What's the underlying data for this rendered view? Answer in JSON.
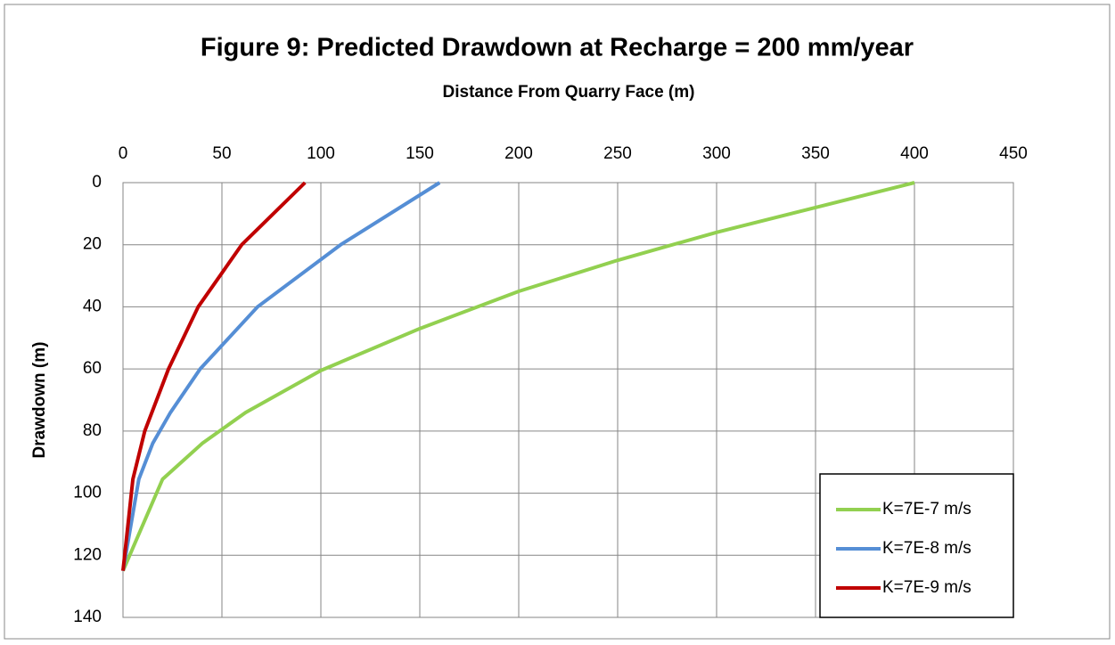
{
  "chart_data": {
    "type": "line",
    "title": "Figure 9: Predicted Drawdown at Recharge = 200 mm/year",
    "x_label": "Distance From Quarry Face (m)",
    "y_label": "Drawdown (m)",
    "xlim": [
      0,
      450
    ],
    "xticks": [
      0,
      50,
      100,
      150,
      200,
      250,
      300,
      350,
      400,
      450
    ],
    "ylim": [
      0,
      140
    ],
    "yticks": [
      0,
      20,
      40,
      60,
      80,
      100,
      120,
      140
    ],
    "y_reversed": true,
    "x_axis_position": "top",
    "grid": true,
    "legend": "lower right",
    "series": [
      {
        "name": "K=7E-7 m/s",
        "color": "#92d050",
        "x": [
          0,
          20,
          40,
          62,
          100,
          150,
          200,
          250,
          300,
          350,
          400
        ],
        "values": [
          125,
          95.5,
          84,
          74,
          60.5,
          47,
          35,
          25,
          16,
          8,
          0
        ]
      },
      {
        "name": "K=7E-8 m/s",
        "color": "#558ed5",
        "x": [
          0,
          8,
          15,
          24,
          39,
          68,
          110,
          160
        ],
        "values": [
          125,
          95.5,
          84,
          74,
          60,
          40,
          20,
          0
        ]
      },
      {
        "name": "K=7E-9 m/s",
        "color": "#c00000",
        "x": [
          0,
          5,
          11,
          23,
          38,
          60,
          92
        ],
        "values": [
          125,
          95.5,
          80,
          60,
          40,
          20,
          0
        ]
      }
    ]
  }
}
